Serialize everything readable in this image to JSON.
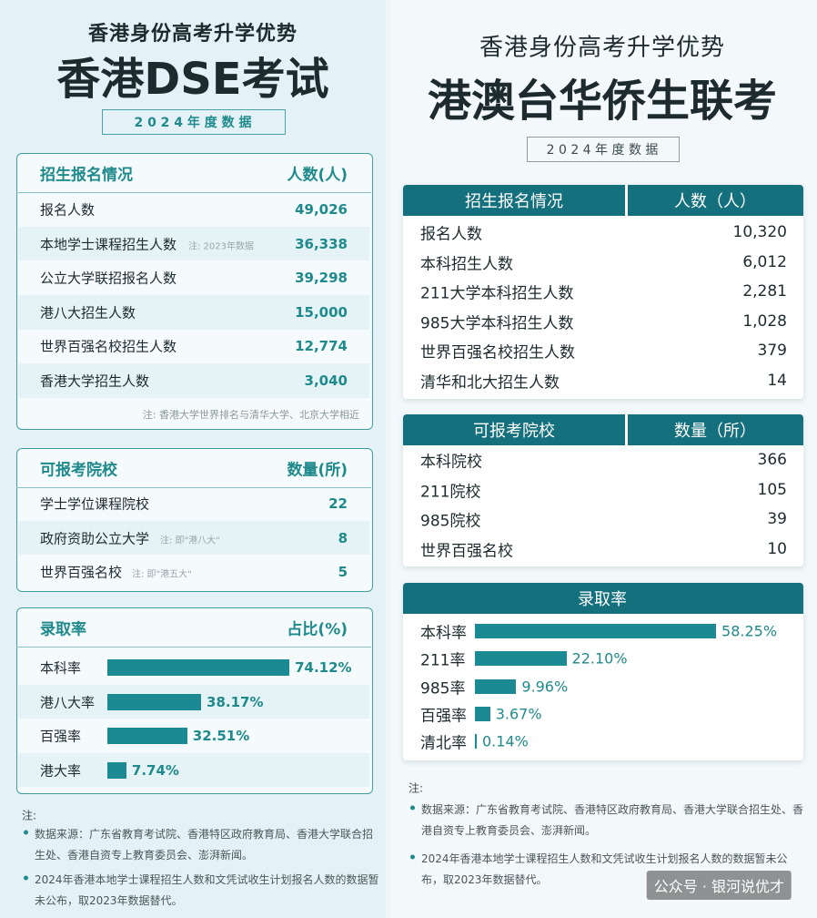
{
  "left": {
    "subtitle": "香港身份高考升学优势",
    "title": "香港DSE考试",
    "year_badge": "2 0 2 4 年 度 数 据",
    "enrollment": {
      "header": [
        "招生报名情况",
        "人数(人)"
      ],
      "rows": [
        {
          "label": "报名人数",
          "value": "49,026"
        },
        {
          "label": "本地学士课程招生人数",
          "note": "注: 2023年数据",
          "value": "36,338"
        },
        {
          "label": "公立大学联招报名人数",
          "value": "39,298"
        },
        {
          "label": "港八大招生人数",
          "value": "15,000"
        },
        {
          "label": "世界百强名校招生人数",
          "value": "12,774"
        },
        {
          "label": "香港大学招生人数",
          "value": "3,040"
        }
      ],
      "note": "注: 香港大学世界排名与清华大学、北京大学相近"
    },
    "schools": {
      "header": [
        "可报考院校",
        "数量(所)"
      ],
      "rows": [
        {
          "label": "学士学位课程院校",
          "value": "22"
        },
        {
          "label": "政府资助公立大学",
          "note": "注: 即\"港八大\"",
          "value": "8"
        },
        {
          "label": "世界百强名校",
          "note": "注: 即\"港五大\"",
          "value": "5"
        }
      ]
    },
    "rates": {
      "header": [
        "录取率",
        "占比(%)"
      ],
      "rows": [
        {
          "label": "本科率",
          "rate": {
            "value": 74.12,
            "label": "74.12%"
          }
        },
        {
          "label": "港八大率",
          "rate": {
            "value": 38.17,
            "label": "38.17%"
          }
        },
        {
          "label": "百强率",
          "rate": {
            "value": 32.51,
            "label": "32.51%"
          }
        },
        {
          "label": "港大率",
          "rate": {
            "value": 7.74,
            "label": "7.74%"
          }
        }
      ]
    },
    "footnote": {
      "label": "注:",
      "items": [
        "数据来源：广东省教育考试院、香港特区政府教育局、香港大学联合招生处、香港自资专上教育委员会、澎湃新闻。",
        "2024年香港本地学士课程招生人数和文凭试收生计划报名人数的数据暂未公布，取2023年数据替代。"
      ]
    }
  },
  "right": {
    "subtitle": "香港身份高考升学优势",
    "title": "港澳台华侨生联考",
    "year_badge": "2 0 2 4 年 度 数 据",
    "enrollment": {
      "header": [
        "招生报名情况",
        "人数（人）"
      ],
      "rows": [
        {
          "label": "报名人数",
          "value": "10,320"
        },
        {
          "label": "本科招生人数",
          "value": "6,012"
        },
        {
          "label": "211大学本科招生人数",
          "value": "2,281"
        },
        {
          "label": "985大学本科招生人数",
          "value": "1,028"
        },
        {
          "label": "世界百强名校招生人数",
          "value": "379"
        },
        {
          "label": "清华和北大招生人数",
          "value": "14"
        }
      ]
    },
    "schools": {
      "header": [
        "可报考院校",
        "数量（所）"
      ],
      "rows": [
        {
          "label": "本科院校",
          "value": "366"
        },
        {
          "label": "211院校",
          "value": "105"
        },
        {
          "label": "985院校",
          "value": "39"
        },
        {
          "label": "世界百强名校",
          "value": "10"
        }
      ]
    },
    "rates": {
      "header": "录取率",
      "rows": [
        {
          "label": "本科率",
          "rate": {
            "value": 58.25,
            "label": "58.25%"
          }
        },
        {
          "label": "211率",
          "rate": {
            "value": 22.1,
            "label": "22.10%"
          }
        },
        {
          "label": "985率",
          "rate": {
            "value": 9.96,
            "label": "9.96%"
          }
        },
        {
          "label": "百强率",
          "rate": {
            "value": 3.67,
            "label": "3.67%"
          }
        },
        {
          "label": "清北率",
          "rate": {
            "value": 0.14,
            "label": "0.14%"
          }
        }
      ]
    },
    "footnote": {
      "label": "注:",
      "items": [
        "数据来源：广东省教育考试院、香港特区政府教育局、香港大学联合招生处、香港自资专上教育委员会、澎湃新闻。",
        "2024年香港本地学士课程招生人数和文凭试收生计划报名人数的数据暂未公布，取2023年数据替代。"
      ]
    }
  },
  "watermark": "公众号 · 银河说优才"
}
